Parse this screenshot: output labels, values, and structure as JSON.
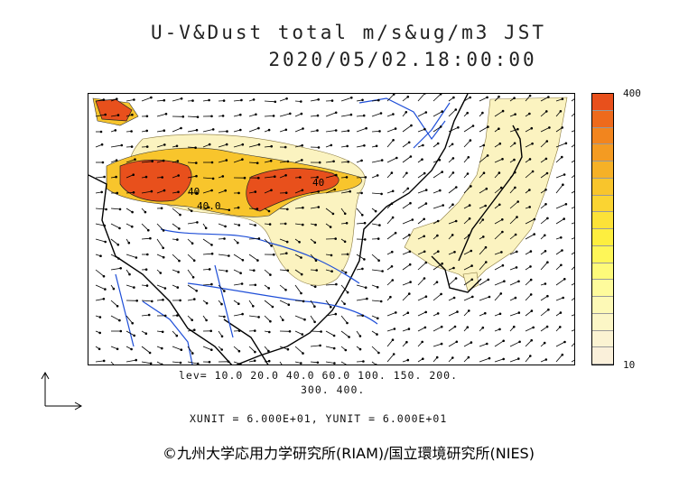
{
  "title": {
    "line1": "U-V&Dust total m/s&ug/m3 JST",
    "line2": "2020/05/02.18:00:00"
  },
  "colorbar": {
    "max_label": "400",
    "min_label": "10",
    "colors_top_to_bottom": [
      "#e8501c",
      "#ee6a1c",
      "#f2851e",
      "#f49b22",
      "#f6b127",
      "#f8c52c",
      "#fad432",
      "#fce238",
      "#fdee3f",
      "#fef658",
      "#fefa7a",
      "#fefb9c",
      "#fdf9b6",
      "#fcf6c6",
      "#fbf3d2",
      "#faf0da"
    ]
  },
  "levels": {
    "line1": "lev= 10.0 20.0 40.0 60.0 100. 150. 200.",
    "line2": "300. 400."
  },
  "units": "XUNIT = 6.000E+01, YUNIT = 6.000E+01",
  "contour_labels": [
    "40.0",
    "40",
    "40"
  ],
  "copyright": "©九州大学応用力学研究所(RIAM)/国立環境研究所(NIES)",
  "colors": {
    "high_dust": "#e8501c",
    "mid_dust": "#f8c52c",
    "low_dust": "#fbf3c0",
    "rivers": "#1f4fd8",
    "coast": "#000000"
  }
}
